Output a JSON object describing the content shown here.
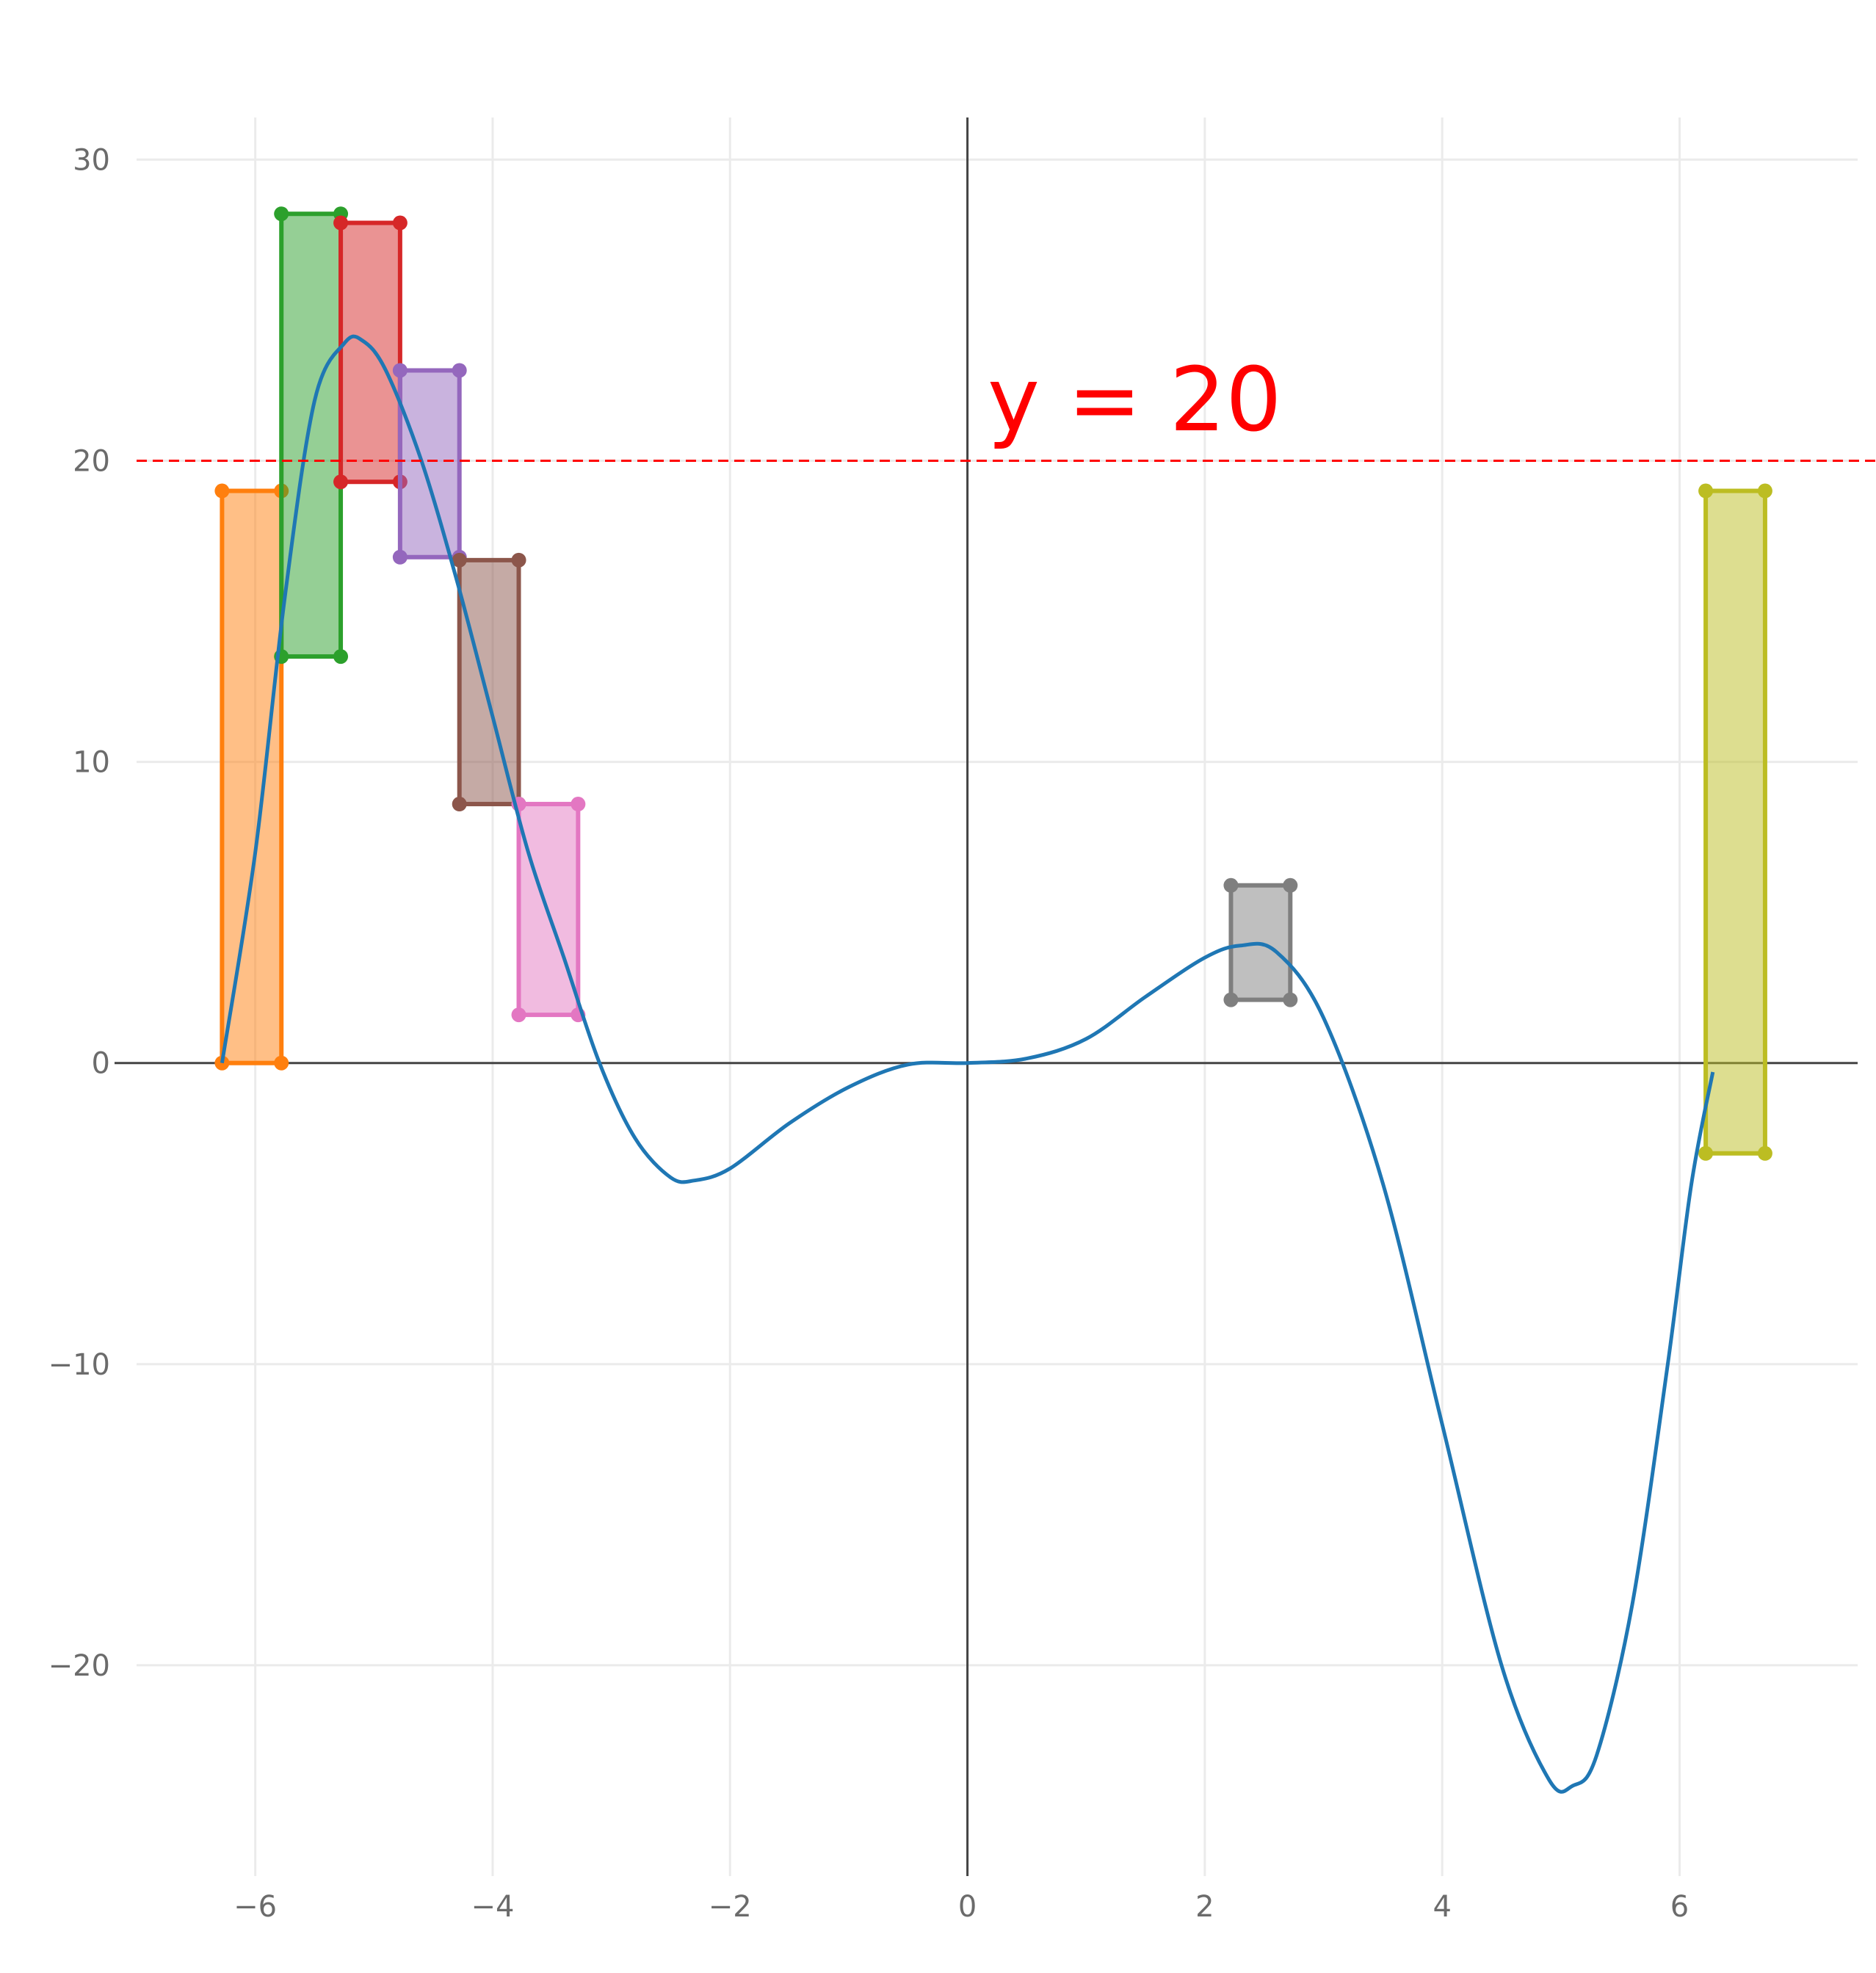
{
  "chart_data": {
    "type": "line",
    "xlim": [
      -7.0,
      7.5
    ],
    "ylim": [
      -27.0,
      31.4
    ],
    "x_ticks": [
      -6,
      -4,
      -2,
      0,
      2,
      4,
      6
    ],
    "y_ticks": [
      -20,
      -10,
      0,
      10,
      20,
      30
    ],
    "x_tick_labels": [
      "−6",
      "−4",
      "−2",
      "0",
      "2",
      "4",
      "6"
    ],
    "y_tick_labels": [
      "−20",
      "−10",
      "0",
      "10",
      "20",
      "30"
    ],
    "grid": true,
    "legend": "none",
    "reference_line": {
      "y": 20,
      "label": "y = 20",
      "color": "#ff0000",
      "style": "dashed"
    },
    "curve": {
      "color": "#1f77b4",
      "x": [
        -6.28,
        -6.0,
        -5.75,
        -5.5,
        -5.25,
        -5.1,
        -4.9,
        -4.6,
        -4.3,
        -4.0,
        -3.7,
        -3.4,
        -3.1,
        -2.8,
        -2.5,
        -2.3,
        -2.0,
        -1.5,
        -1.0,
        -0.5,
        0.0,
        0.5,
        1.0,
        1.5,
        2.0,
        2.3,
        2.6,
        3.0,
        3.5,
        4.0,
        4.5,
        4.9,
        5.1,
        5.3,
        5.6,
        5.9,
        6.1,
        6.28
      ],
      "y": [
        0.0,
        7.0,
        15.5,
        22.0,
        23.9,
        24.0,
        23.0,
        20.0,
        16.0,
        11.5,
        7.0,
        3.5,
        0.0,
        -2.5,
        -3.8,
        -3.9,
        -3.5,
        -2.0,
        -0.8,
        -0.05,
        0.0,
        0.15,
        0.8,
        2.2,
        3.5,
        3.9,
        3.7,
        1.5,
        -4.0,
        -12.0,
        -20.0,
        -23.8,
        -24.0,
        -23.0,
        -18.0,
        -10.0,
        -4.0,
        -0.3
      ]
    },
    "rectangles": [
      {
        "color": "#ff7f0e",
        "x0": -6.28,
        "x1": -5.78,
        "y0": 0.0,
        "y1": 19.0
      },
      {
        "color": "#2ca02c",
        "x0": -5.78,
        "x1": -5.28,
        "y0": 13.5,
        "y1": 28.2
      },
      {
        "color": "#d62728",
        "x0": -5.28,
        "x1": -4.78,
        "y0": 19.3,
        "y1": 27.9
      },
      {
        "color": "#9467bd",
        "x0": -4.78,
        "x1": -4.28,
        "y0": 16.8,
        "y1": 23.0
      },
      {
        "color": "#8c564b",
        "x0": -4.28,
        "x1": -3.78,
        "y0": 8.6,
        "y1": 16.7
      },
      {
        "color": "#e377c2",
        "x0": -3.78,
        "x1": -3.28,
        "y0": 1.6,
        "y1": 8.6
      },
      {
        "color": "#7f7f7f",
        "x0": 2.22,
        "x1": 2.72,
        "y0": 2.1,
        "y1": 5.9
      },
      {
        "color": "#bcbd22",
        "x0": 6.22,
        "x1": 6.72,
        "y0": -3.0,
        "y1": 19.0
      }
    ]
  }
}
